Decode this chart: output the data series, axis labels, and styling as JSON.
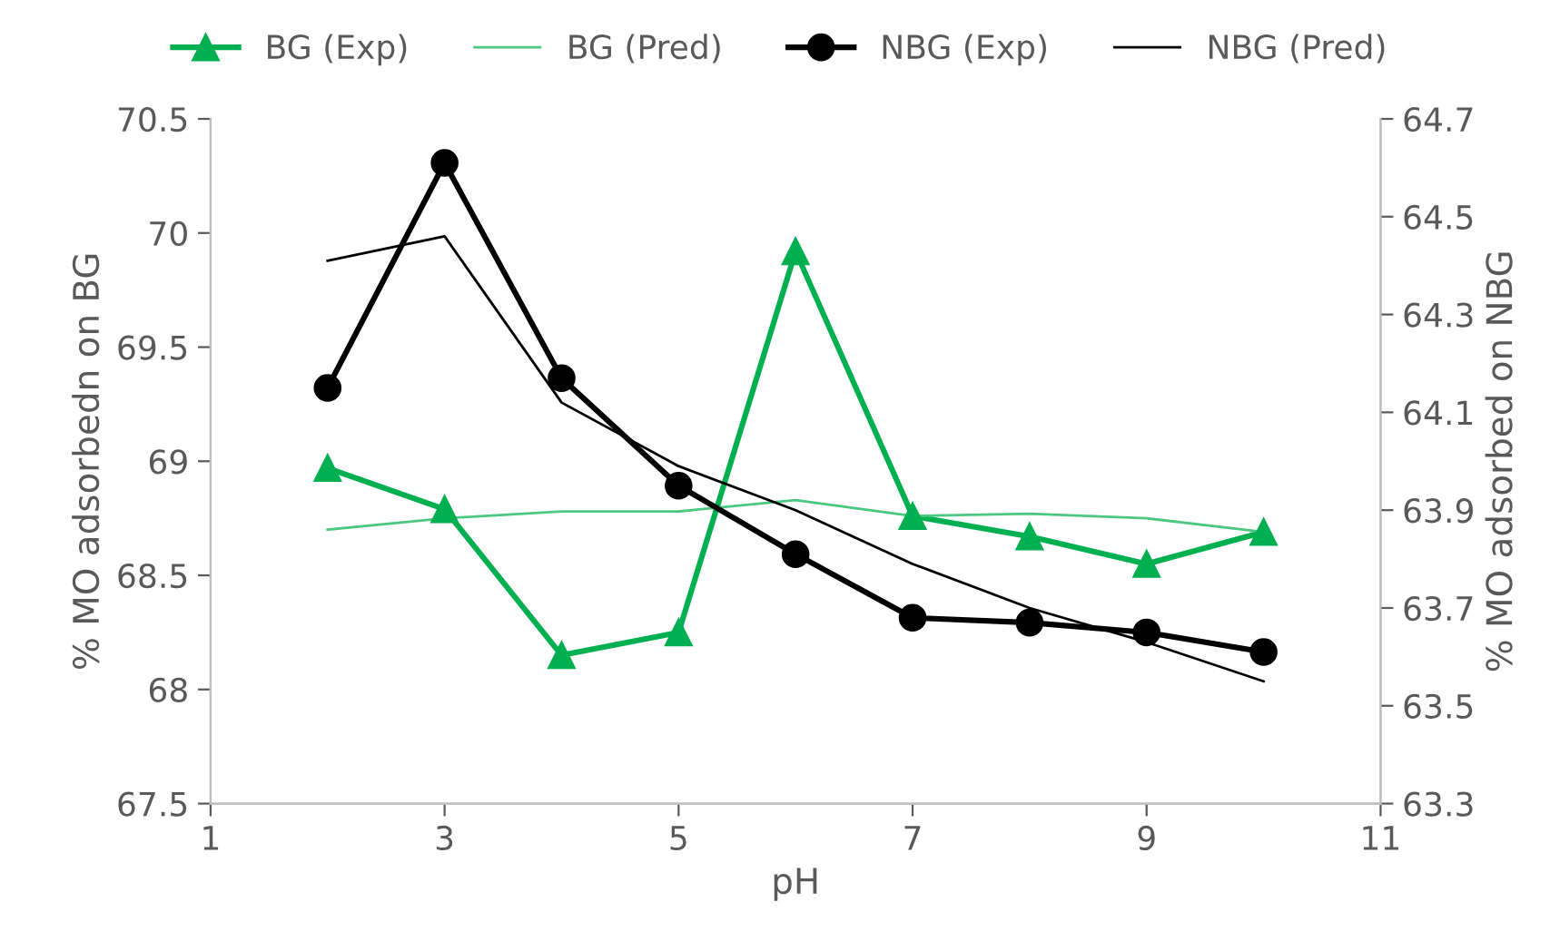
{
  "chart_data": {
    "type": "line",
    "xlabel": "pH",
    "ylabel": "% MO adsorbedn on BG",
    "y2label": "% MO adsorbed on NBG",
    "x": [
      2,
      3,
      4,
      5,
      6,
      7,
      8,
      9,
      10
    ],
    "xlim": [
      1,
      11
    ],
    "xticks": [
      1,
      3,
      5,
      7,
      9,
      11
    ],
    "ylim": [
      67.5,
      70.5
    ],
    "yticks": [
      67.5,
      68,
      68.5,
      69,
      69.5,
      70,
      70.5
    ],
    "y2lim": [
      63.3,
      64.7
    ],
    "y2ticks": [
      63.3,
      63.5,
      63.7,
      63.9,
      64.1,
      64.3,
      64.5,
      64.7
    ],
    "grid": false,
    "legend": "top",
    "series": [
      {
        "name": "BG (Exp)",
        "color": "#00b050",
        "marker": "triangle",
        "values": [
          68.97,
          68.79,
          68.15,
          68.25,
          69.92,
          68.76,
          68.67,
          68.55,
          68.69
        ]
      },
      {
        "name": "BG (Pred)",
        "color": "#4cc77f",
        "marker": "none",
        "values": [
          68.7,
          68.75,
          68.78,
          68.78,
          68.83,
          68.76,
          68.77,
          68.75,
          68.69
        ]
      },
      {
        "name": "NBG (Exp)",
        "color": "#000000",
        "marker": "circle",
        "axis": "y2",
        "values": [
          64.15,
          64.61,
          64.17,
          63.95,
          63.81,
          63.68,
          63.67,
          63.65,
          63.61
        ]
      },
      {
        "name": "NBG (Pred)",
        "color": "#000000",
        "marker": "none",
        "axis": "y2",
        "values": [
          64.41,
          64.46,
          64.12,
          63.99,
          63.9,
          63.79,
          63.7,
          63.63,
          63.55
        ]
      }
    ]
  }
}
